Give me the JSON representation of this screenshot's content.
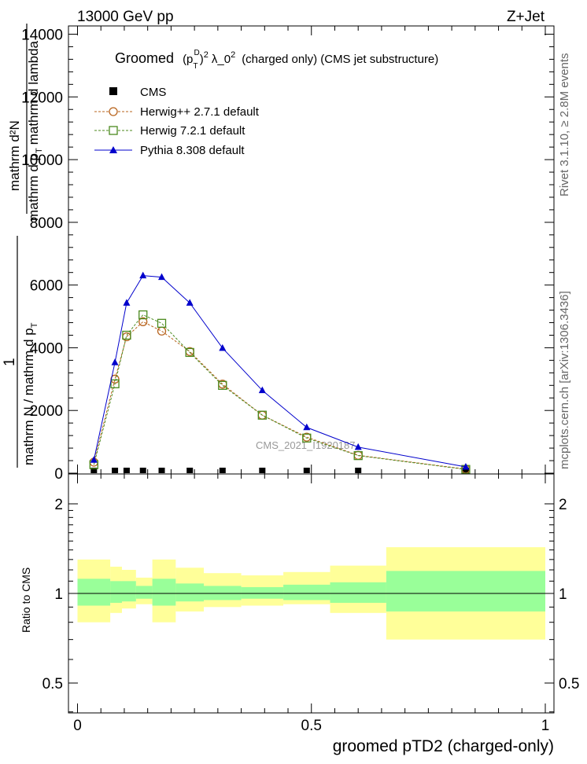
{
  "header": {
    "left": "13000 GeV pp",
    "right": "Z+Jet"
  },
  "side_text": {
    "top": "Rivet 3.1.10, ≥ 2.8M events",
    "bottom": "mcplots.cern.ch [arXiv:1306.3436]"
  },
  "watermark": "CMS_2021_I1920187",
  "chart_data": [
    {
      "type": "line",
      "title": "Groomed (p_T^D)^2 λ_0^2 (charged only) (CMS jet substructure)",
      "title_parts": {
        "pre": "Groomed",
        "p": "(p",
        "sup_D": "D",
        "sub_T": "T",
        "close": ")",
        "sup_2a": "2",
        "lambda": "λ_0",
        "sup_2b": "2",
        "post": "(charged only) (CMS jet substructure)"
      },
      "ylabel_lines": [
        "mathrm d²N",
        "mathrm d p_T mathrm d lambda",
        "1",
        "mathrm N / mathrm d p_T"
      ],
      "ylabel_parts": {
        "numer_top": "mathrm d²N",
        "denom_top": "mathrm d p",
        "denom_top_sub": "T",
        "denom_top_tail": "mathrm d lambda",
        "one": "1",
        "numer_bottom": "mathrm N / mathrm d p",
        "numer_bottom_sub": "T"
      },
      "ylim": [
        0,
        14200
      ],
      "y_ticks": [
        0,
        2000,
        4000,
        6000,
        8000,
        10000,
        12000,
        14000
      ],
      "y_tick_labels": [
        "0",
        "2000",
        "4000",
        "6000",
        "8000",
        "10000",
        "12000",
        "14000"
      ],
      "xlim": [
        0,
        1
      ],
      "series": [
        {
          "name": "CMS",
          "color": "#000000",
          "marker": "filled-square",
          "x": [
            0.035,
            0.08,
            0.105,
            0.14,
            0.18,
            0.24,
            0.31,
            0.395,
            0.49,
            0.6,
            0.83
          ],
          "values": [
            0,
            0,
            0,
            0,
            0,
            0,
            0,
            0,
            0,
            0,
            0
          ]
        },
        {
          "name": "Herwig++ 2.7.1 default",
          "color": "#b8641e",
          "marker": "open-circle",
          "dashed": true,
          "x": [
            0.035,
            0.08,
            0.105,
            0.14,
            0.18,
            0.24,
            0.31,
            0.395,
            0.49,
            0.6,
            0.83
          ],
          "values": [
            350,
            3000,
            4350,
            4830,
            4530,
            3880,
            2840,
            1850,
            1150,
            570,
            130
          ]
        },
        {
          "name": "Herwig 7.2.1 default",
          "color": "#4b8a1e",
          "marker": "open-square",
          "dashed": true,
          "x": [
            0.035,
            0.08,
            0.105,
            0.14,
            0.18,
            0.24,
            0.31,
            0.395,
            0.49,
            0.6,
            0.83
          ],
          "values": [
            270,
            2850,
            4400,
            5050,
            4780,
            3850,
            2800,
            1850,
            1120,
            560,
            120
          ]
        },
        {
          "name": "Pythia 8.308 default",
          "color": "#0000cc",
          "marker": "filled-triangle",
          "dashed": false,
          "x": [
            0.035,
            0.08,
            0.105,
            0.14,
            0.18,
            0.24,
            0.31,
            0.395,
            0.49,
            0.6,
            0.83
          ],
          "values": [
            420,
            3530,
            5430,
            6300,
            6250,
            5430,
            3990,
            2640,
            1460,
            830,
            200
          ]
        }
      ]
    },
    {
      "type": "area",
      "ylabel": "Ratio to CMS",
      "ylim": [
        0.35,
        2.3
      ],
      "y_ticks": [
        0.5,
        1,
        2
      ],
      "y_tick_labels": [
        "0.5",
        "1",
        "2"
      ],
      "xlim": [
        0,
        1
      ],
      "x_ticks": [
        0,
        0.5,
        1
      ],
      "x_tick_labels": [
        "0",
        "0.5",
        "1"
      ],
      "xlabel": "groomed pTD2 (charged-only)",
      "bin_edges": [
        0.0,
        0.07,
        0.095,
        0.125,
        0.16,
        0.21,
        0.27,
        0.35,
        0.44,
        0.54,
        0.66,
        1.0
      ],
      "bands": [
        {
          "name": "total uncertainty",
          "color": "#ffff99",
          "low": [
            0.8,
            0.86,
            0.89,
            0.92,
            0.8,
            0.87,
            0.9,
            0.91,
            0.92,
            0.86,
            0.7
          ],
          "high": [
            1.3,
            1.23,
            1.2,
            1.13,
            1.3,
            1.22,
            1.17,
            1.15,
            1.18,
            1.24,
            1.43
          ]
        },
        {
          "name": "statistical uncertainty",
          "color": "#99ff99",
          "low": [
            0.91,
            0.93,
            0.94,
            0.96,
            0.91,
            0.94,
            0.95,
            0.96,
            0.95,
            0.93,
            0.87
          ],
          "high": [
            1.12,
            1.1,
            1.1,
            1.06,
            1.12,
            1.08,
            1.06,
            1.05,
            1.07,
            1.09,
            1.19
          ]
        }
      ],
      "reference_line": 1
    }
  ]
}
